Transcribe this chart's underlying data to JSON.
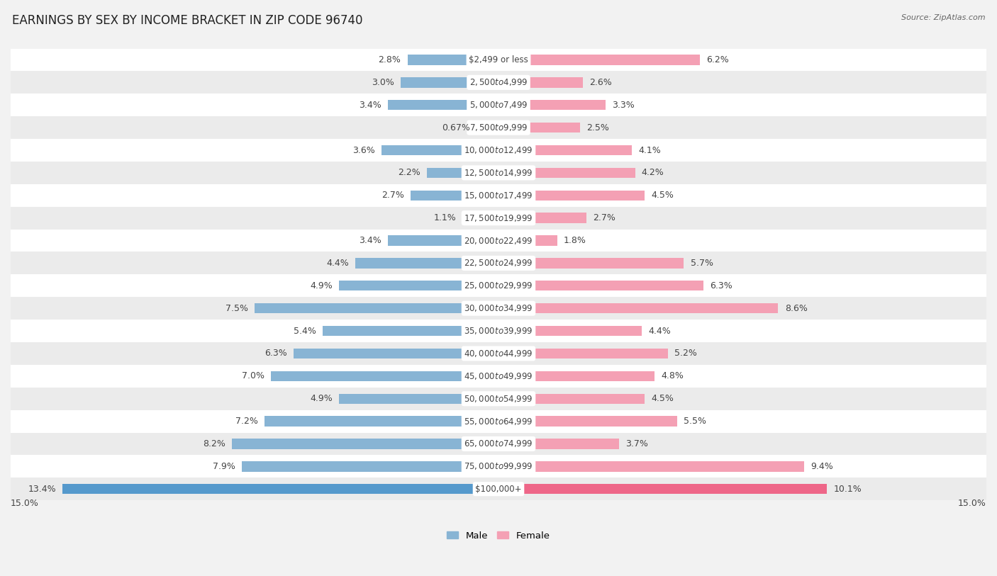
{
  "title": "EARNINGS BY SEX BY INCOME BRACKET IN ZIP CODE 96740",
  "source": "Source: ZipAtlas.com",
  "categories": [
    "$2,499 or less",
    "$2,500 to $4,999",
    "$5,000 to $7,499",
    "$7,500 to $9,999",
    "$10,000 to $12,499",
    "$12,500 to $14,999",
    "$15,000 to $17,499",
    "$17,500 to $19,999",
    "$20,000 to $22,499",
    "$22,500 to $24,999",
    "$25,000 to $29,999",
    "$30,000 to $34,999",
    "$35,000 to $39,999",
    "$40,000 to $44,999",
    "$45,000 to $49,999",
    "$50,000 to $54,999",
    "$55,000 to $64,999",
    "$65,000 to $74,999",
    "$75,000 to $99,999",
    "$100,000+"
  ],
  "male_values": [
    2.8,
    3.0,
    3.4,
    0.67,
    3.6,
    2.2,
    2.7,
    1.1,
    3.4,
    4.4,
    4.9,
    7.5,
    5.4,
    6.3,
    7.0,
    4.9,
    7.2,
    8.2,
    7.9,
    13.4
  ],
  "female_values": [
    6.2,
    2.6,
    3.3,
    2.5,
    4.1,
    4.2,
    4.5,
    2.7,
    1.8,
    5.7,
    6.3,
    8.6,
    4.4,
    5.2,
    4.8,
    4.5,
    5.5,
    3.7,
    9.4,
    10.1
  ],
  "male_color": "#88b4d4",
  "female_color": "#f4a0b4",
  "male_last_color": "#5599cc",
  "female_last_color": "#ee6688",
  "xlim": 15.0,
  "legend_male": "Male",
  "legend_female": "Female",
  "bg_color_light": "#f2f2f2",
  "bg_color_dark": "#e8e8e8",
  "bar_row_color": "#ffffff",
  "title_fontsize": 12,
  "label_fontsize": 9,
  "category_fontsize": 8.5,
  "source_fontsize": 8
}
